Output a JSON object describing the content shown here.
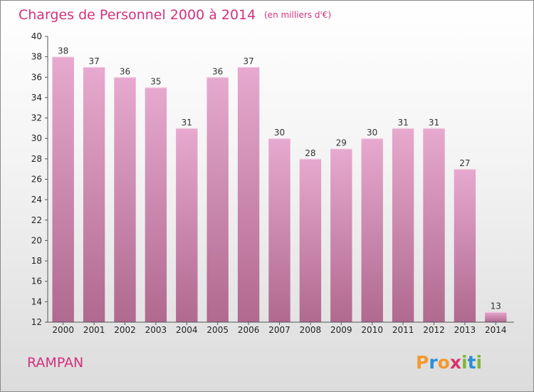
{
  "title": "Charges de Personnel 2000 à 2014",
  "subtitle": "(en milliers d'€)",
  "commune": "RAMPAN",
  "logo": {
    "letters": [
      "P",
      "r",
      "o",
      "x",
      "i",
      "t",
      "i"
    ],
    "colors": [
      "#f39a2e",
      "#2b8ed6",
      "#f39a2e",
      "#d8336d",
      "#7cb935",
      "#2b8ed6",
      "#7cb935"
    ]
  },
  "colors": {
    "bar_top": "#e7a9cf",
    "bar_bottom": "#b0698f",
    "title": "#d3317c"
  },
  "chart_data": {
    "type": "bar",
    "categories": [
      "2000",
      "2001",
      "2002",
      "2003",
      "2004",
      "2005",
      "2006",
      "2007",
      "2008",
      "2009",
      "2010",
      "2011",
      "2012",
      "2013",
      "2014"
    ],
    "values": [
      38,
      37,
      36,
      35,
      31,
      36,
      37,
      30,
      28,
      29,
      30,
      31,
      31,
      27,
      13
    ],
    "ylim": [
      12,
      40
    ],
    "yticks": [
      12,
      14,
      16,
      18,
      20,
      22,
      24,
      26,
      28,
      30,
      32,
      34,
      36,
      38,
      40
    ],
    "grid": false,
    "legend": "none"
  }
}
